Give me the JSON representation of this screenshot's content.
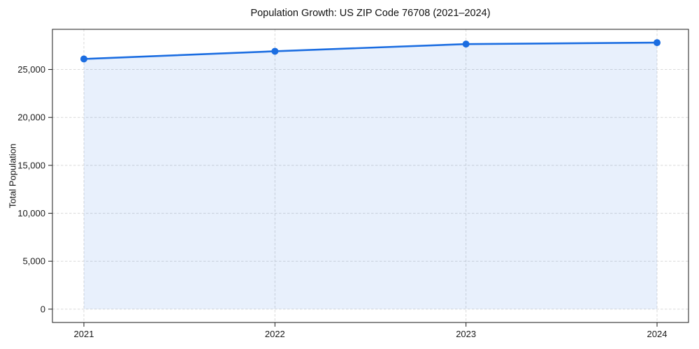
{
  "chart_data": {
    "type": "line",
    "title": "Population Growth: US ZIP Code 76708 (2021–2024)",
    "xlabel": "",
    "ylabel": "Total Population",
    "categories": [
      "2021",
      "2022",
      "2023",
      "2024"
    ],
    "series": [
      {
        "name": "Total Population",
        "values": [
          26100,
          26900,
          27650,
          27800
        ]
      }
    ],
    "area_fill": true,
    "marker": "circle",
    "grid": true,
    "legend": false,
    "ylim": [
      -1390,
      29190
    ],
    "yticks": [
      0,
      5000,
      10000,
      15000,
      20000,
      25000
    ],
    "ytick_labels": [
      "0",
      "5,000",
      "10,000",
      "15,000",
      "20,000",
      "25,000"
    ],
    "line_color": "#1b6de1",
    "fill_color": "rgba(27,109,225,0.10)",
    "grid_color": "#d9d9d9",
    "spine_color": "#1a1a1a"
  }
}
